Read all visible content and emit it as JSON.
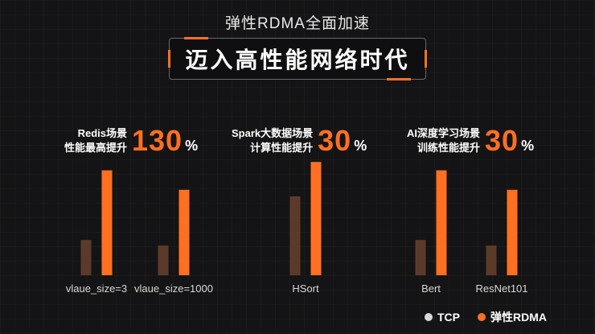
{
  "header": {
    "subtitle": "弹性RDMA全面加速",
    "title": "迈入高性能网络时代"
  },
  "stats": [
    {
      "label_line1": "Redis场景",
      "label_line2": "性能最高提升",
      "value": "130",
      "unit": "%"
    },
    {
      "label_line1": "Spark大数据场景",
      "label_line2": "计算性能提升",
      "value": "30",
      "unit": "%"
    },
    {
      "label_line1": "AI深度学习场景",
      "label_line2": "训练性能提升",
      "value": "30",
      "unit": "%"
    }
  ],
  "colors": {
    "accent": "#ff6f21",
    "tcp": "#5c3a2a",
    "rdma": "#ff6f21",
    "tcp_legend": "#d9d9d9"
  },
  "chart_data": {
    "type": "bar",
    "categories": [
      "vlaue_size=3",
      "vlaue_size=1000",
      "HSort",
      "Bert",
      "ResNet101"
    ],
    "series": [
      {
        "name": "TCP",
        "values": [
          38,
          32,
          85,
          38,
          32
        ]
      },
      {
        "name": "弹性RDMA",
        "values": [
          113,
          92,
          122,
          113,
          92
        ]
      }
    ],
    "ylim": [
      0,
      130
    ],
    "legend": "bottom-right"
  }
}
